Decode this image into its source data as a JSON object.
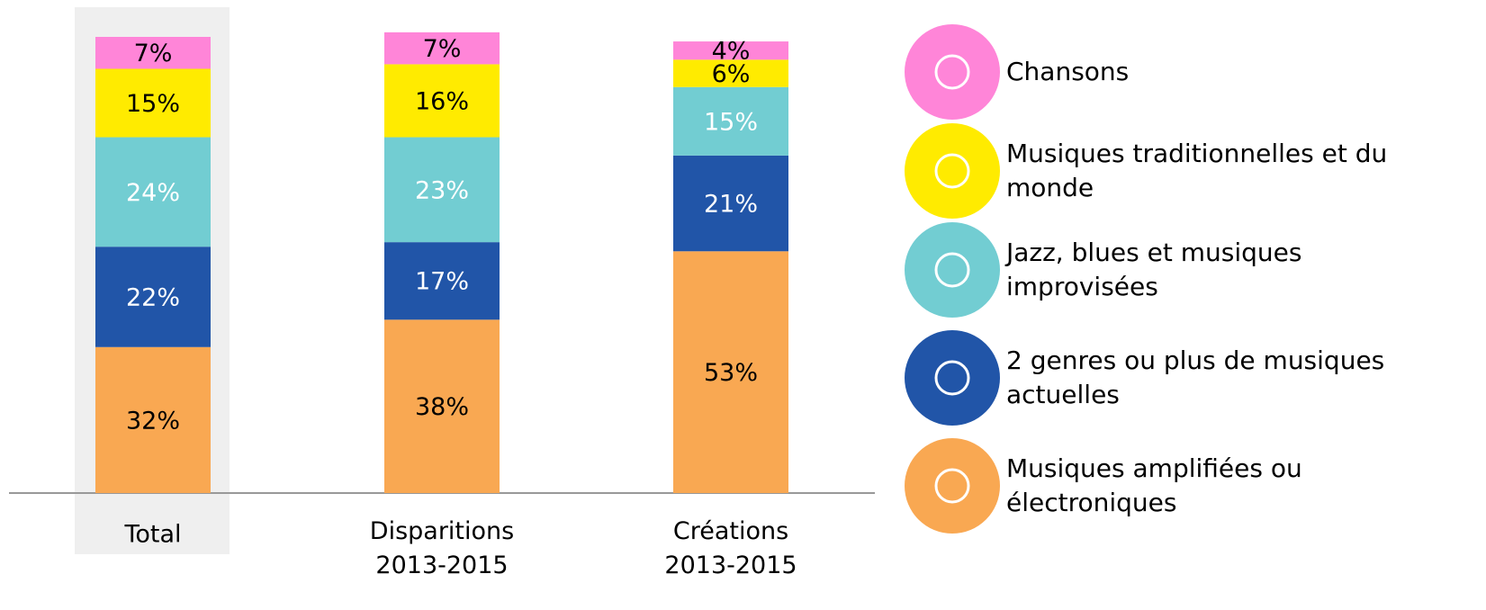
{
  "chart_data": {
    "type": "stacked_bar",
    "categories": [
      "Total",
      "Disparitions 2013-2015",
      "Créations 2013-2015"
    ],
    "series": [
      {
        "name": "Musiques amplifiées ou électroniques",
        "color": "#F9A852",
        "values": [
          32,
          38,
          53
        ],
        "value_labels": [
          "32%",
          "38%",
          "53%"
        ]
      },
      {
        "name": "2 genres ou plus de musiques actuelles",
        "color": "#2155A8",
        "values": [
          22,
          17,
          21
        ],
        "value_labels": [
          "22%",
          "17%",
          "21%"
        ]
      },
      {
        "name": "Jazz, blues et musiques improvisées",
        "color": "#72CDD2",
        "values": [
          24,
          23,
          15
        ],
        "value_labels": [
          "24%",
          "23%",
          "15%"
        ]
      },
      {
        "name": "Musiques traditionnelles et du monde",
        "color": "#FFEB00",
        "values": [
          15,
          16,
          6
        ],
        "value_labels": [
          "15%",
          "16%",
          "6%"
        ]
      },
      {
        "name": "Chansons",
        "color": "#FF85D8",
        "values": [
          7,
          7,
          4
        ],
        "value_labels": [
          "7%",
          "7%",
          "4%"
        ]
      }
    ]
  }
}
